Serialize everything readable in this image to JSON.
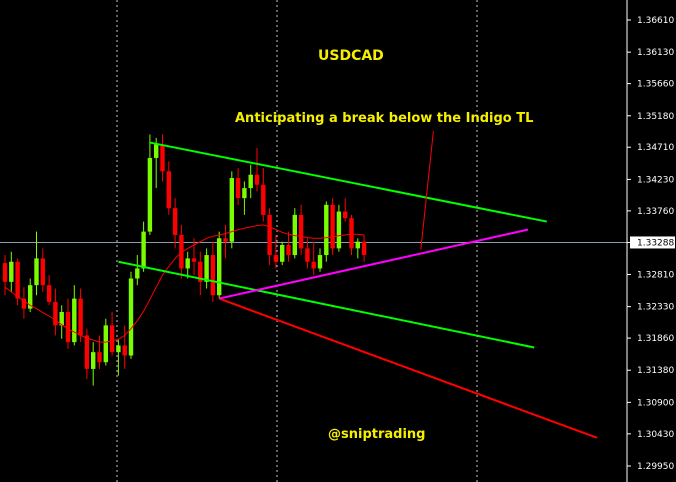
{
  "chart_data": {
    "type": "candlestick",
    "title": "USDCAD",
    "annotation": "Anticipating a break below the Indigo TL",
    "watermark": "@sniptrading",
    "y_axis": {
      "ticks": [
        "1.36610",
        "1.36130",
        "1.35660",
        "1.35180",
        "1.34710",
        "1.34230",
        "1.33760",
        "1.33288",
        "1.32810",
        "1.32330",
        "1.31860",
        "1.31380",
        "1.30900",
        "1.30430",
        "1.29950"
      ],
      "range": [
        1.2995,
        1.3661
      ]
    },
    "current_price": "1.33288",
    "grid": "vertical dotted",
    "colors": {
      "background": "#000000",
      "bull": "#7cfc00",
      "bear": "#ff0000",
      "moving_average": "#ff0000",
      "green_lines": "#00ff00",
      "red_line": "#ff0000",
      "indigo_line": "#ff00ff",
      "text": "#f5f000",
      "axis_text": "#ffffff"
    },
    "candles": [
      [
        1.3298,
        1.331,
        1.325,
        1.327
      ],
      [
        1.327,
        1.3315,
        1.3255,
        1.33
      ],
      [
        1.33,
        1.3305,
        1.3235,
        1.3245
      ],
      [
        1.3245,
        1.3262,
        1.3215,
        1.323
      ],
      [
        1.323,
        1.3275,
        1.3225,
        1.3265
      ],
      [
        1.3265,
        1.3345,
        1.325,
        1.3305
      ],
      [
        1.3305,
        1.332,
        1.3255,
        1.3265
      ],
      [
        1.3265,
        1.328,
        1.3235,
        1.324
      ],
      [
        1.324,
        1.326,
        1.319,
        1.3205
      ],
      [
        1.3205,
        1.3235,
        1.3185,
        1.3225
      ],
      [
        1.3225,
        1.3245,
        1.317,
        1.318
      ],
      [
        1.318,
        1.3265,
        1.3175,
        1.3245
      ],
      [
        1.3245,
        1.326,
        1.318,
        1.319
      ],
      [
        1.319,
        1.32,
        1.3125,
        1.314
      ],
      [
        1.314,
        1.318,
        1.3115,
        1.3165
      ],
      [
        1.3165,
        1.319,
        1.314,
        1.315
      ],
      [
        1.315,
        1.3215,
        1.3145,
        1.3205
      ],
      [
        1.3205,
        1.3225,
        1.316,
        1.3165
      ],
      [
        1.3165,
        1.3185,
        1.313,
        1.3175
      ],
      [
        1.3175,
        1.3205,
        1.314,
        1.316
      ],
      [
        1.316,
        1.3285,
        1.3155,
        1.3275
      ],
      [
        1.3275,
        1.331,
        1.3265,
        1.329
      ],
      [
        1.329,
        1.336,
        1.3285,
        1.3345
      ],
      [
        1.3345,
        1.349,
        1.334,
        1.3455
      ],
      [
        1.3455,
        1.3485,
        1.341,
        1.3475
      ],
      [
        1.3475,
        1.349,
        1.342,
        1.3435
      ],
      [
        1.3435,
        1.345,
        1.337,
        1.338
      ],
      [
        1.338,
        1.3395,
        1.332,
        1.334
      ],
      [
        1.334,
        1.3355,
        1.3275,
        1.329
      ],
      [
        1.329,
        1.3315,
        1.3275,
        1.3305
      ],
      [
        1.3305,
        1.3335,
        1.328,
        1.33
      ],
      [
        1.33,
        1.3315,
        1.325,
        1.327
      ],
      [
        1.327,
        1.332,
        1.326,
        1.331
      ],
      [
        1.331,
        1.333,
        1.324,
        1.325
      ],
      [
        1.325,
        1.3345,
        1.3245,
        1.3335
      ],
      [
        1.3335,
        1.3355,
        1.3305,
        1.333
      ],
      [
        1.333,
        1.3435,
        1.332,
        1.3425
      ],
      [
        1.3425,
        1.344,
        1.3385,
        1.3395
      ],
      [
        1.3395,
        1.342,
        1.337,
        1.341
      ],
      [
        1.341,
        1.3445,
        1.3395,
        1.343
      ],
      [
        1.343,
        1.347,
        1.3405,
        1.3415
      ],
      [
        1.3415,
        1.344,
        1.336,
        1.337
      ],
      [
        1.337,
        1.338,
        1.3295,
        1.331
      ],
      [
        1.331,
        1.334,
        1.329,
        1.33
      ],
      [
        1.33,
        1.333,
        1.3295,
        1.3325
      ],
      [
        1.3325,
        1.3345,
        1.33,
        1.331
      ],
      [
        1.331,
        1.338,
        1.3305,
        1.337
      ],
      [
        1.337,
        1.3385,
        1.331,
        1.332
      ],
      [
        1.332,
        1.3335,
        1.329,
        1.33
      ],
      [
        1.33,
        1.333,
        1.328,
        1.329
      ],
      [
        1.329,
        1.332,
        1.3285,
        1.331
      ],
      [
        1.331,
        1.339,
        1.33,
        1.3385
      ],
      [
        1.3385,
        1.3395,
        1.331,
        1.332
      ],
      [
        1.332,
        1.3385,
        1.3315,
        1.3375
      ],
      [
        1.3375,
        1.3395,
        1.336,
        1.3365
      ],
      [
        1.3365,
        1.337,
        1.331,
        1.332
      ],
      [
        1.332,
        1.3335,
        1.3305,
        1.333
      ],
      [
        1.333,
        1.334,
        1.33,
        1.331
      ]
    ],
    "moving_average": [
      1.3262,
      1.3255,
      1.3248,
      1.3242,
      1.3235,
      1.323,
      1.3224,
      1.3219,
      1.3213,
      1.3206,
      1.32,
      1.3195,
      1.319,
      1.3186,
      1.3183,
      1.318,
      1.318,
      1.3182,
      1.3184,
      1.319,
      1.32,
      1.3212,
      1.3226,
      1.3244,
      1.3262,
      1.328,
      1.3293,
      1.3305,
      1.3314,
      1.332,
      1.3325,
      1.333,
      1.3335,
      1.3338,
      1.334,
      1.3342,
      1.3345,
      1.3348,
      1.335,
      1.3352,
      1.3354,
      1.3355,
      1.3352,
      1.3348,
      1.3344,
      1.3341,
      1.3339,
      1.3338,
      1.3336,
      1.3335,
      1.3335,
      1.3336,
      1.3337,
      1.3339,
      1.334,
      1.3341,
      1.3341,
      1.334
    ],
    "trendlines": [
      {
        "name": "upper-green",
        "color": "green",
        "from": [
          23,
          1.3478
        ],
        "to": [
          86,
          1.336
        ]
      },
      {
        "name": "lower-green",
        "color": "green",
        "from": [
          18,
          1.33
        ],
        "to": [
          84,
          1.3172
        ]
      },
      {
        "name": "red",
        "color": "red",
        "from": [
          34,
          1.3245
        ],
        "to": [
          94,
          1.3037
        ]
      },
      {
        "name": "indigo",
        "color": "magenta",
        "from": [
          34,
          1.3245
        ],
        "to": [
          83,
          1.3348
        ]
      },
      {
        "name": "projection",
        "color": "red",
        "from": [
          66,
          1.3318
        ],
        "to": [
          68,
          1.3495
        ]
      }
    ]
  }
}
